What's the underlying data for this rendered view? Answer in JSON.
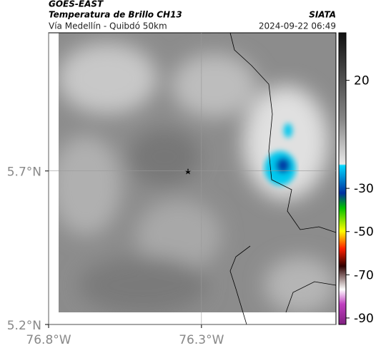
{
  "header": {
    "title": "GOES-EAST",
    "subtitle": "Temperatura de Brillo CH13",
    "route": "Vía Medellín - Quibdó 50km",
    "source": "SIATA",
    "timestamp": "2024-09-22 06:49"
  },
  "map": {
    "xlim": [
      -76.8,
      -75.86
    ],
    "ylim": [
      5.2,
      6.15
    ],
    "xticks": [
      {
        "value": -76.8,
        "label": "76.8°W"
      },
      {
        "value": -76.3,
        "label": "76.3°W"
      }
    ],
    "yticks": [
      {
        "value": 5.7,
        "label": "5.7°N"
      },
      {
        "value": 5.2,
        "label": "5.2°N"
      }
    ]
  },
  "colorbar": {
    "lim": [
      -93,
      42
    ],
    "ticks": [
      20,
      -30,
      -50,
      -70,
      -90
    ]
  }
}
